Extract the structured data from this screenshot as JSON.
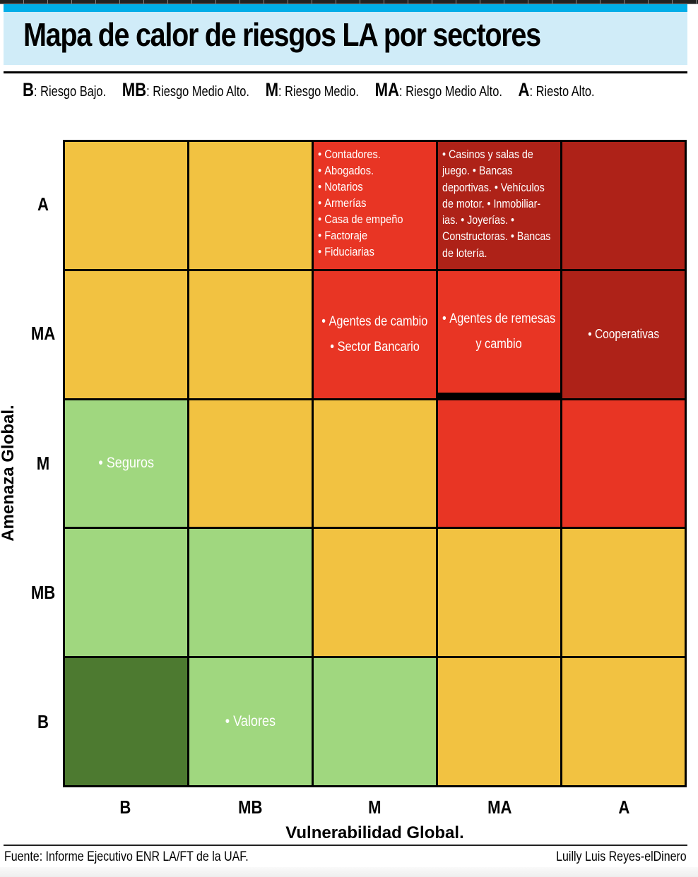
{
  "header": {
    "title": "Mapa de calor de riesgos LA por sectores"
  },
  "legend": [
    {
      "code": "B",
      "text": ": Riesgo Bajo."
    },
    {
      "code": "MB",
      "text": ": Riesgo Medio Alto."
    },
    {
      "code": "M",
      "text": ": Riesgo Medio."
    },
    {
      "code": "MA",
      "text": ": Riesgo Medio Alto."
    },
    {
      "code": "A",
      "text": ": Riesto Alto."
    }
  ],
  "colors": {
    "dark_green": "#4d7a30",
    "light_green": "#a0d77f",
    "yellow": "#f2c241",
    "red": "#e83524",
    "dark_red": "#ae2218",
    "title_band": "#d0ecf8",
    "title_strip": "#00aee8"
  },
  "chart_data": {
    "type": "heatmap",
    "title": "Mapa de calor de riesgos LA por sectores",
    "xlabel": "Vulnerabilidad Global.",
    "ylabel": "Amenaza Global.",
    "x_categories": [
      "B",
      "MB",
      "M",
      "MA",
      "A"
    ],
    "y_categories": [
      "A",
      "MA",
      "M",
      "MB",
      "B"
    ],
    "cells": [
      [
        {
          "level": "yellow",
          "items": []
        },
        {
          "level": "yellow",
          "items": []
        },
        {
          "level": "red",
          "items": [
            "Contadores.",
            "Abogados.",
            "Notarios",
            "Armerías",
            "Casa de empeño",
            "Factoraje",
            "Fiduciarias"
          ]
        },
        {
          "level": "dark_red",
          "items": [],
          "paragraph": "• Casinos y salas de juego. • Bancas deportivas. • Vehículos de motor. • Inmobiliar- ias. • Joyerías. • Constructoras. • Bancas de lotería."
        },
        {
          "level": "dark_red",
          "items": []
        }
      ],
      [
        {
          "level": "yellow",
          "items": []
        },
        {
          "level": "yellow",
          "items": []
        },
        {
          "level": "red",
          "items": [
            "Agentes de cambio",
            "Sector Bancario"
          ]
        },
        {
          "level": "red",
          "items": [
            "Agentes de remesas",
            "y cambio"
          ]
        },
        {
          "level": "dark_red",
          "items": [
            "Cooperativas"
          ]
        }
      ],
      [
        {
          "level": "light_green",
          "items": [
            "Seguros"
          ]
        },
        {
          "level": "yellow",
          "items": []
        },
        {
          "level": "yellow",
          "items": []
        },
        {
          "level": "red",
          "items": []
        },
        {
          "level": "red",
          "items": []
        }
      ],
      [
        {
          "level": "light_green",
          "items": []
        },
        {
          "level": "light_green",
          "items": []
        },
        {
          "level": "yellow",
          "items": []
        },
        {
          "level": "yellow",
          "items": []
        },
        {
          "level": "yellow",
          "items": []
        }
      ],
      [
        {
          "level": "dark_green",
          "items": []
        },
        {
          "level": "light_green",
          "items": [
            "Valores"
          ]
        },
        {
          "level": "light_green",
          "items": []
        },
        {
          "level": "yellow",
          "items": []
        },
        {
          "level": "yellow",
          "items": []
        }
      ]
    ]
  },
  "footer": {
    "source": "Fuente: Informe Ejecutivo ENR LA/FT de la UAF.",
    "author": "Luilly Luis Reyes-elDinero"
  }
}
